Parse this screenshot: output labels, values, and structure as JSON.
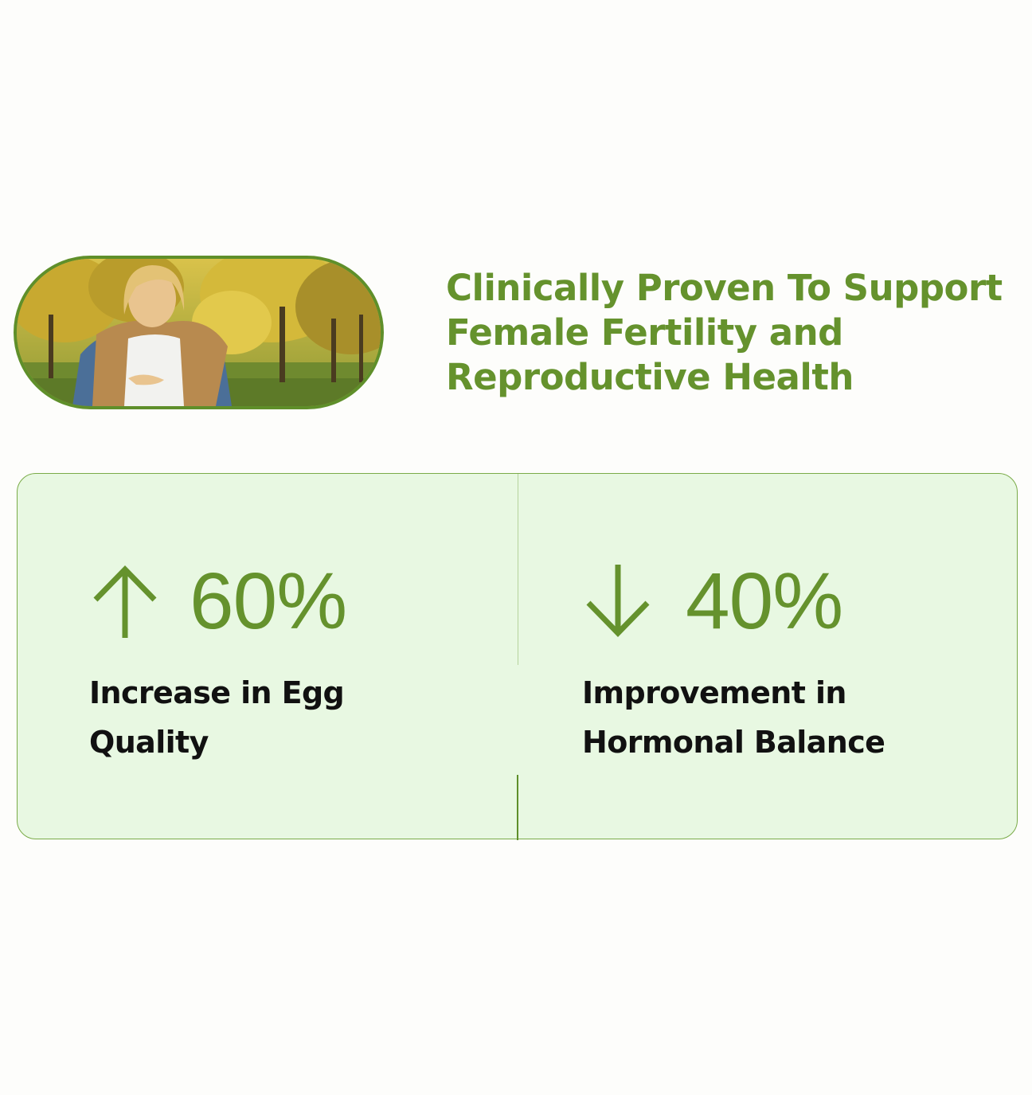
{
  "hero": {
    "headline": "Clinically Proven To Support Female Fertility and Reproductive Health",
    "image": "woman-in-autumn-park-photo"
  },
  "stats": [
    {
      "icon": "arrow-up-icon",
      "value": "60%",
      "label": "Increase in Egg Quality"
    },
    {
      "icon": "arrow-down-icon",
      "value": "40%",
      "label": "Improvement in Hormonal Balance"
    }
  ],
  "colors": {
    "accent": "#65922d",
    "card_background": "#e8f8e2",
    "card_border": "#7aab48",
    "text": "#111111",
    "page_background": "#fdfdfb"
  }
}
